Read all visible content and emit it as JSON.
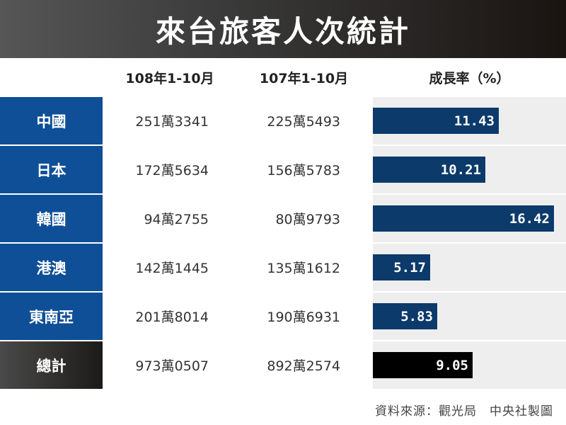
{
  "title": "來台旅客人次統計",
  "columns": {
    "col1": "108年1-10月",
    "col2": "107年1-10月",
    "col3": "成長率（%）"
  },
  "rows": [
    {
      "label": "中國",
      "v108": "251萬3341",
      "v107": "225萬5493",
      "growth_label": "11.43"
    },
    {
      "label": "日本",
      "v108": "172萬5634",
      "v107": "156萬5783",
      "growth_label": "10.21"
    },
    {
      "label": "韓國",
      "v108": "94萬2755",
      "v107": "80萬9793",
      "growth_label": "16.42"
    },
    {
      "label": "港澳",
      "v108": "142萬1445",
      "v107": "135萬1612",
      "growth_label": "5.17"
    },
    {
      "label": "東南亞",
      "v108": "201萬8014",
      "v107": "190萬6931",
      "growth_label": "5.83"
    },
    {
      "label": "總計",
      "v108": "973萬0507",
      "v107": "892萬2574",
      "growth_label": "9.05"
    }
  ],
  "footer": "資料來源：觀光局　中央社製圖",
  "colors": {
    "row_label": "#0f4f97",
    "bar": "#0b3a6b",
    "total_bar": "#000000"
  },
  "chart_data": {
    "type": "table",
    "title": "來台旅客人次統計",
    "headers": [
      "",
      "108年1-10月",
      "107年1-10月",
      "成長率（%）"
    ],
    "categories": [
      "中國",
      "日本",
      "韓國",
      "港澳",
      "東南亞",
      "總計"
    ],
    "series": [
      {
        "name": "108年1-10月",
        "values": [
          2513341,
          1725634,
          942755,
          1421445,
          2018014,
          9730507
        ]
      },
      {
        "name": "107年1-10月",
        "values": [
          2255493,
          1565783,
          809793,
          1351612,
          1906931,
          8922574
        ]
      },
      {
        "name": "成長率（%）",
        "values": [
          11.43,
          10.21,
          16.42,
          5.17,
          5.83,
          9.05
        ]
      }
    ],
    "bar_scale_max": 17.5
  }
}
